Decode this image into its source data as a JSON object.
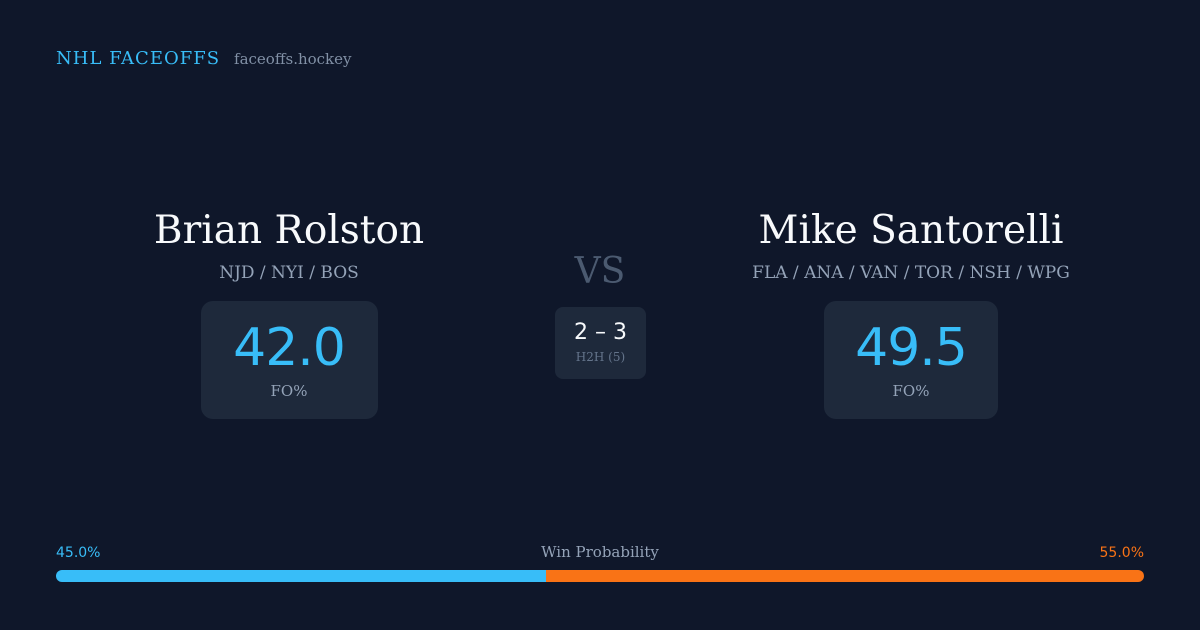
{
  "brand": {
    "title": "NHL FACEOFFS",
    "site": "faceoffs.hockey"
  },
  "player_left": {
    "name": "Brian Rolston",
    "teams": "NJD / NYI / BOS",
    "stat_value": "42.0",
    "stat_label": "FO%"
  },
  "player_right": {
    "name": "Mike Santorelli",
    "teams": "FLA / ANA / VAN / TOR / NSH / WPG",
    "stat_value": "49.5",
    "stat_label": "FO%"
  },
  "versus": {
    "label": "VS",
    "h2h_score": "2 – 3",
    "h2h_label": "H2H (5)"
  },
  "win_probability": {
    "title": "Win Probability",
    "left_text": "45.0%",
    "right_text": "55.0%",
    "left_fraction": 0.45,
    "right_fraction": 0.55
  },
  "colors": {
    "background": "#0f172a",
    "accent_left": "#38bdf8",
    "accent_right": "#f97316",
    "card": "#1e293b"
  }
}
